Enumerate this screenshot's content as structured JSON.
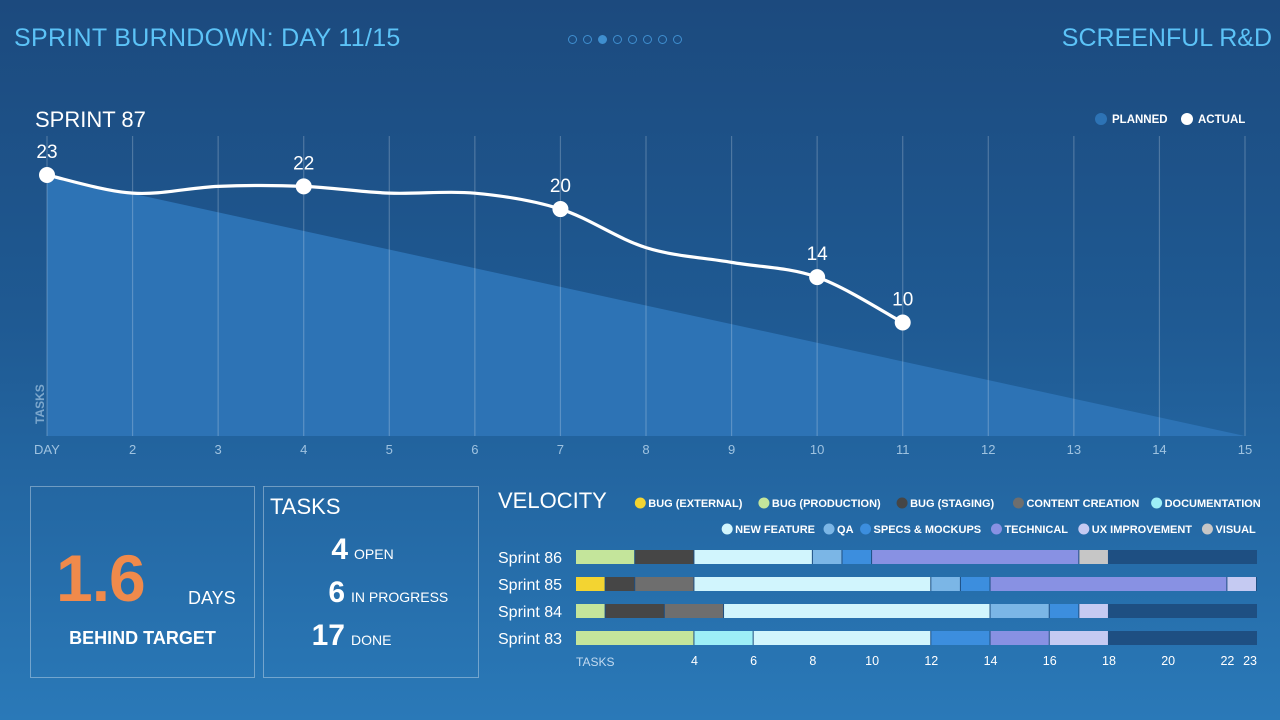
{
  "header": {
    "title": "SPRINT BURNDOWN: DAY 11/15",
    "brand": "SCREENFUL R&D",
    "pager_count": 8,
    "pager_active": 2
  },
  "colors": {
    "accent": "#5cc3f7",
    "planned_area": "#2d73b5",
    "actual_line": "#ffffff",
    "highlight": "#f08a4b",
    "bar_track": "#1e4f82"
  },
  "chart_data": [
    {
      "type": "line",
      "title": "SPRINT 87",
      "xlabel": "DAY",
      "ylabel": "TASKS",
      "x_ticks": [
        "DAY",
        "2",
        "3",
        "4",
        "5",
        "6",
        "7",
        "8",
        "9",
        "10",
        "11",
        "12",
        "13",
        "14",
        "15"
      ],
      "xlim": [
        1,
        15
      ],
      "ylim": [
        0,
        23
      ],
      "grid": true,
      "legend": {
        "placement": "top-right",
        "entries": [
          "PLANNED",
          "ACTUAL"
        ]
      },
      "series": [
        {
          "name": "PLANNED",
          "style": "area",
          "x": [
            1,
            15
          ],
          "y": [
            23,
            0
          ]
        },
        {
          "name": "ACTUAL",
          "style": "line",
          "x": [
            1,
            2,
            3,
            4,
            5,
            6,
            7,
            8,
            9,
            10,
            11
          ],
          "y": [
            23,
            21.4,
            22,
            22,
            21.4,
            21.4,
            20,
            16.6,
            15.3,
            14,
            10
          ]
        }
      ],
      "labeled_points": [
        {
          "x": 1,
          "y": 23,
          "label": "23"
        },
        {
          "x": 4,
          "y": 22,
          "label": "22"
        },
        {
          "x": 7,
          "y": 20,
          "label": "20"
        },
        {
          "x": 10,
          "y": 14,
          "label": "14"
        },
        {
          "x": 11,
          "y": 10,
          "label": "10"
        }
      ]
    },
    {
      "type": "bar",
      "orientation": "horizontal",
      "stacked": true,
      "title": "VELOCITY",
      "xlabel": "TASKS",
      "xlim": [
        0,
        23
      ],
      "x_ticks": [
        4,
        6,
        8,
        10,
        12,
        14,
        16,
        18,
        20,
        22,
        23
      ],
      "legend": {
        "placement": "top-right"
      },
      "categories_legend": [
        {
          "name": "BUG (EXTERNAL)",
          "color": "#f3d431"
        },
        {
          "name": "BUG (PRODUCTION)",
          "color": "#c4e59b"
        },
        {
          "name": "BUG (STAGING)",
          "color": "#464646"
        },
        {
          "name": "CONTENT CREATION",
          "color": "#6e6e6e"
        },
        {
          "name": "DOCUMENTATION",
          "color": "#9deff7"
        },
        {
          "name": "NEW FEATURE",
          "color": "#d1f5fd"
        },
        {
          "name": "QA",
          "color": "#7bb6e6"
        },
        {
          "name": "SPECS & MOCKUPS",
          "color": "#3c8ede"
        },
        {
          "name": "TECHNICAL",
          "color": "#8891e3"
        },
        {
          "name": "UX IMPROVEMENT",
          "color": "#c5caf2"
        },
        {
          "name": "VISUAL",
          "color": "#c6c6c6"
        }
      ],
      "rows": [
        {
          "name": "Sprint 86",
          "segments": [
            {
              "category": "BUG (PRODUCTION)",
              "value": 2
            },
            {
              "category": "BUG (STAGING)",
              "value": 2
            },
            {
              "category": "NEW FEATURE",
              "value": 4
            },
            {
              "category": "QA",
              "value": 1
            },
            {
              "category": "SPECS & MOCKUPS",
              "value": 1
            },
            {
              "category": "TECHNICAL",
              "value": 7
            },
            {
              "category": "VISUAL",
              "value": 1
            }
          ]
        },
        {
          "name": "Sprint 85",
          "segments": [
            {
              "category": "BUG (EXTERNAL)",
              "value": 1
            },
            {
              "category": "BUG (STAGING)",
              "value": 1
            },
            {
              "category": "CONTENT CREATION",
              "value": 2
            },
            {
              "category": "NEW FEATURE",
              "value": 8
            },
            {
              "category": "QA",
              "value": 1
            },
            {
              "category": "SPECS & MOCKUPS",
              "value": 1
            },
            {
              "category": "TECHNICAL",
              "value": 8
            },
            {
              "category": "UX IMPROVEMENT",
              "value": 1
            }
          ]
        },
        {
          "name": "Sprint 84",
          "segments": [
            {
              "category": "BUG (PRODUCTION)",
              "value": 1
            },
            {
              "category": "BUG (STAGING)",
              "value": 2
            },
            {
              "category": "CONTENT CREATION",
              "value": 2
            },
            {
              "category": "NEW FEATURE",
              "value": 9
            },
            {
              "category": "QA",
              "value": 2
            },
            {
              "category": "SPECS & MOCKUPS",
              "value": 1
            },
            {
              "category": "UX IMPROVEMENT",
              "value": 1
            }
          ]
        },
        {
          "name": "Sprint 83",
          "segments": [
            {
              "category": "BUG (PRODUCTION)",
              "value": 4
            },
            {
              "category": "DOCUMENTATION",
              "value": 2
            },
            {
              "category": "NEW FEATURE",
              "value": 6
            },
            {
              "category": "SPECS & MOCKUPS",
              "value": 2
            },
            {
              "category": "TECHNICAL",
              "value": 2
            },
            {
              "category": "UX IMPROVEMENT",
              "value": 2
            }
          ]
        }
      ]
    }
  ],
  "lag": {
    "value": "1.6",
    "unit": "DAYS",
    "caption": "BEHIND TARGET"
  },
  "tasks": {
    "title": "TASKS",
    "open": {
      "count": "4",
      "label": "OPEN"
    },
    "in_progress": {
      "count": "6",
      "label": "IN PROGRESS"
    },
    "done": {
      "count": "17",
      "label": "DONE"
    }
  }
}
